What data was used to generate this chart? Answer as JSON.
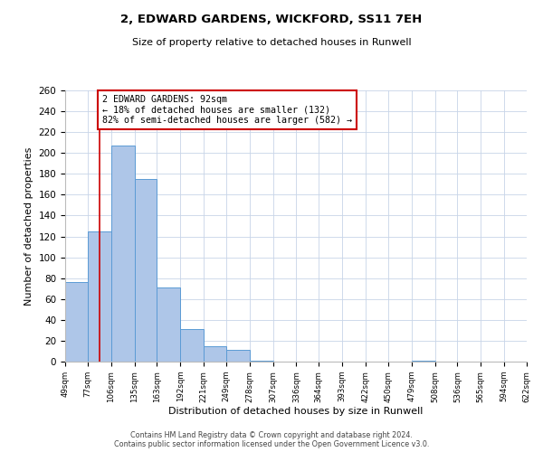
{
  "title": "2, EDWARD GARDENS, WICKFORD, SS11 7EH",
  "subtitle": "Size of property relative to detached houses in Runwell",
  "xlabel": "Distribution of detached houses by size in Runwell",
  "ylabel": "Number of detached properties",
  "bar_values": [
    76,
    125,
    207,
    175,
    71,
    31,
    15,
    11,
    1,
    0,
    0,
    0,
    0,
    0,
    0,
    1,
    0,
    0,
    0,
    0
  ],
  "bin_edges": [
    49,
    77,
    106,
    135,
    163,
    192,
    221,
    249,
    278,
    307,
    336,
    364,
    393,
    422,
    450,
    479,
    508,
    536,
    565,
    594,
    622
  ],
  "tick_labels": [
    "49sqm",
    "77sqm",
    "106sqm",
    "135sqm",
    "163sqm",
    "192sqm",
    "221sqm",
    "249sqm",
    "278sqm",
    "307sqm",
    "336sqm",
    "364sqm",
    "393sqm",
    "422sqm",
    "450sqm",
    "479sqm",
    "508sqm",
    "536sqm",
    "565sqm",
    "594sqm",
    "622sqm"
  ],
  "bar_color": "#aec6e8",
  "bar_edge_color": "#5b9bd5",
  "property_line_x": 92,
  "property_line_color": "#cc0000",
  "annotation_text": "2 EDWARD GARDENS: 92sqm\n← 18% of detached houses are smaller (132)\n82% of semi-detached houses are larger (582) →",
  "annotation_box_color": "#cc0000",
  "ylim": [
    0,
    260
  ],
  "yticks": [
    0,
    20,
    40,
    60,
    80,
    100,
    120,
    140,
    160,
    180,
    200,
    220,
    240,
    260
  ],
  "footer_line1": "Contains HM Land Registry data © Crown copyright and database right 2024.",
  "footer_line2": "Contains public sector information licensed under the Open Government Licence v3.0.",
  "background_color": "#ffffff",
  "grid_color": "#c8d4e8"
}
